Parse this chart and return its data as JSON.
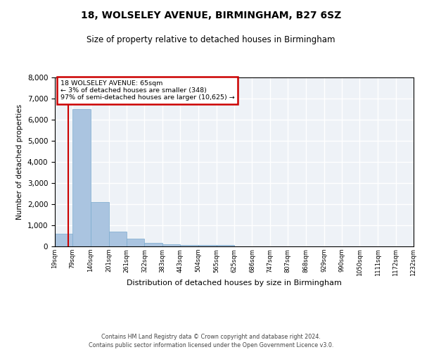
{
  "title1": "18, WOLSELEY AVENUE, BIRMINGHAM, B27 6SZ",
  "title2": "Size of property relative to detached houses in Birmingham",
  "xlabel": "Distribution of detached houses by size in Birmingham",
  "ylabel": "Number of detached properties",
  "annotation_line1": "18 WOLSELEY AVENUE: 65sqm",
  "annotation_line2": "← 3% of detached houses are smaller (348)",
  "annotation_line3": "97% of semi-detached houses are larger (10,625) →",
  "property_size": 65,
  "bin_edges": [
    19,
    79,
    140,
    201,
    261,
    322,
    383,
    443,
    504,
    565,
    625,
    686,
    747,
    807,
    868,
    929,
    990,
    1050,
    1111,
    1172,
    1232
  ],
  "bar_heights": [
    600,
    6500,
    2100,
    700,
    370,
    160,
    100,
    75,
    60,
    60,
    10,
    5,
    5,
    3,
    2,
    2,
    1,
    1,
    1,
    1
  ],
  "bar_color": "#aac4e0",
  "bar_edgecolor": "#7aaace",
  "red_line_color": "#cc0000",
  "annotation_box_edgecolor": "#cc0000",
  "background_color": "#eef2f7",
  "grid_color": "#ffffff",
  "ylim": [
    0,
    8000
  ],
  "yticks": [
    0,
    1000,
    2000,
    3000,
    4000,
    5000,
    6000,
    7000,
    8000
  ],
  "footer1": "Contains HM Land Registry data © Crown copyright and database right 2024.",
  "footer2": "Contains public sector information licensed under the Open Government Licence v3.0."
}
